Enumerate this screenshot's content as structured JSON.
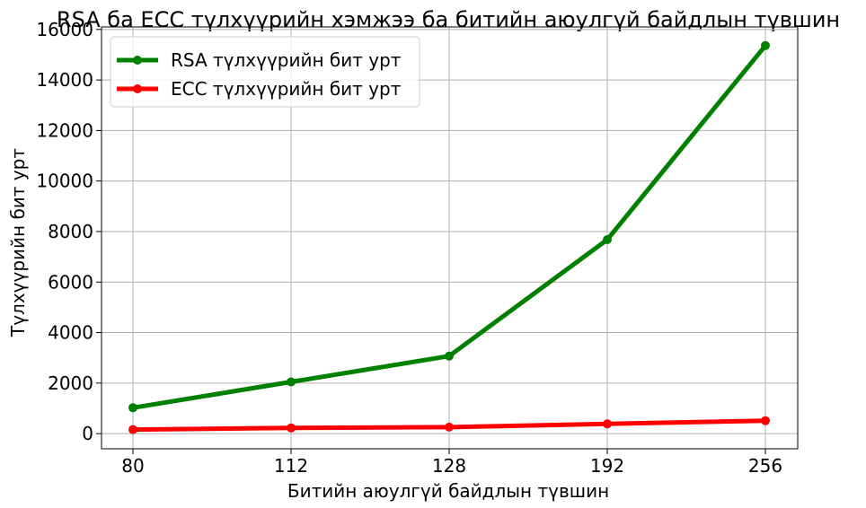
{
  "chart_data": {
    "type": "line",
    "title": "RSA ба ECC түлхүүрийн хэмжээ ба битийн аюулгүй байдлын түвшин",
    "xlabel": "Битийн аюулгүй байдлын түвшин",
    "ylabel": "Түлхүүрийн бит урт",
    "categories": [
      "80",
      "112",
      "128",
      "192",
      "256"
    ],
    "series": [
      {
        "name": "RSA түлхүүрийн бит урт",
        "color": "#008000",
        "values": [
          1024,
          2048,
          3072,
          7680,
          15360
        ]
      },
      {
        "name": "ECC түлхүүрийн бит урт",
        "color": "#ff0000",
        "values": [
          160,
          224,
          256,
          384,
          512
        ]
      }
    ],
    "ylim": [
      -600,
      16100
    ],
    "yticks": [
      "0",
      "2000",
      "4000",
      "6000",
      "8000",
      "10000",
      "12000",
      "14000",
      "16000"
    ],
    "grid": true,
    "legend_position": "top-left"
  }
}
